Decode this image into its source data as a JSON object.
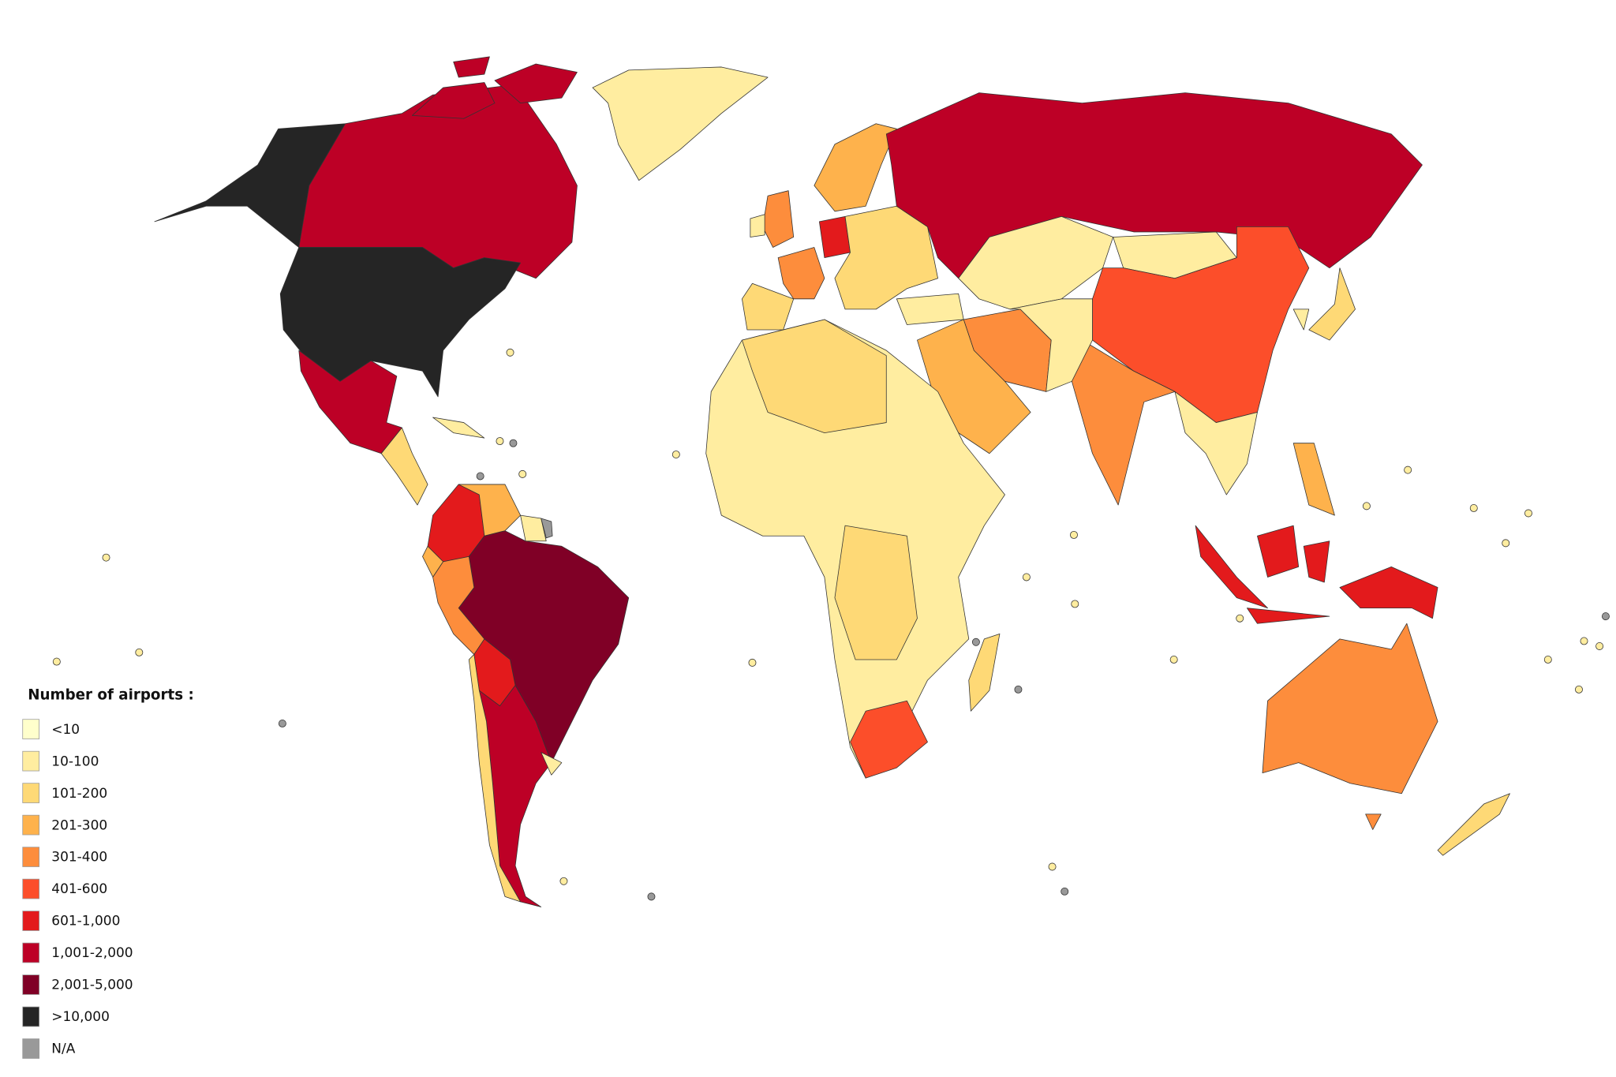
{
  "legend": {
    "title": "Number of airports :",
    "items": [
      {
        "label": "<10",
        "color": "#ffffcc"
      },
      {
        "label": "10-100",
        "color": "#ffeda0"
      },
      {
        "label": "101-200",
        "color": "#fed976"
      },
      {
        "label": "201-300",
        "color": "#feb24c"
      },
      {
        "label": "301-400",
        "color": "#fd8d3c"
      },
      {
        "label": "401-600",
        "color": "#fc4e2a"
      },
      {
        "label": "601-1,000",
        "color": "#e31a1c"
      },
      {
        "label": "1,001-2,000",
        "color": "#bd0026"
      },
      {
        "label": "2,001-5,000",
        "color": "#800026"
      },
      {
        "label": ">10,000",
        "color": "#252525"
      },
      {
        "label": "N/A",
        "color": "#999999"
      }
    ]
  }
}
